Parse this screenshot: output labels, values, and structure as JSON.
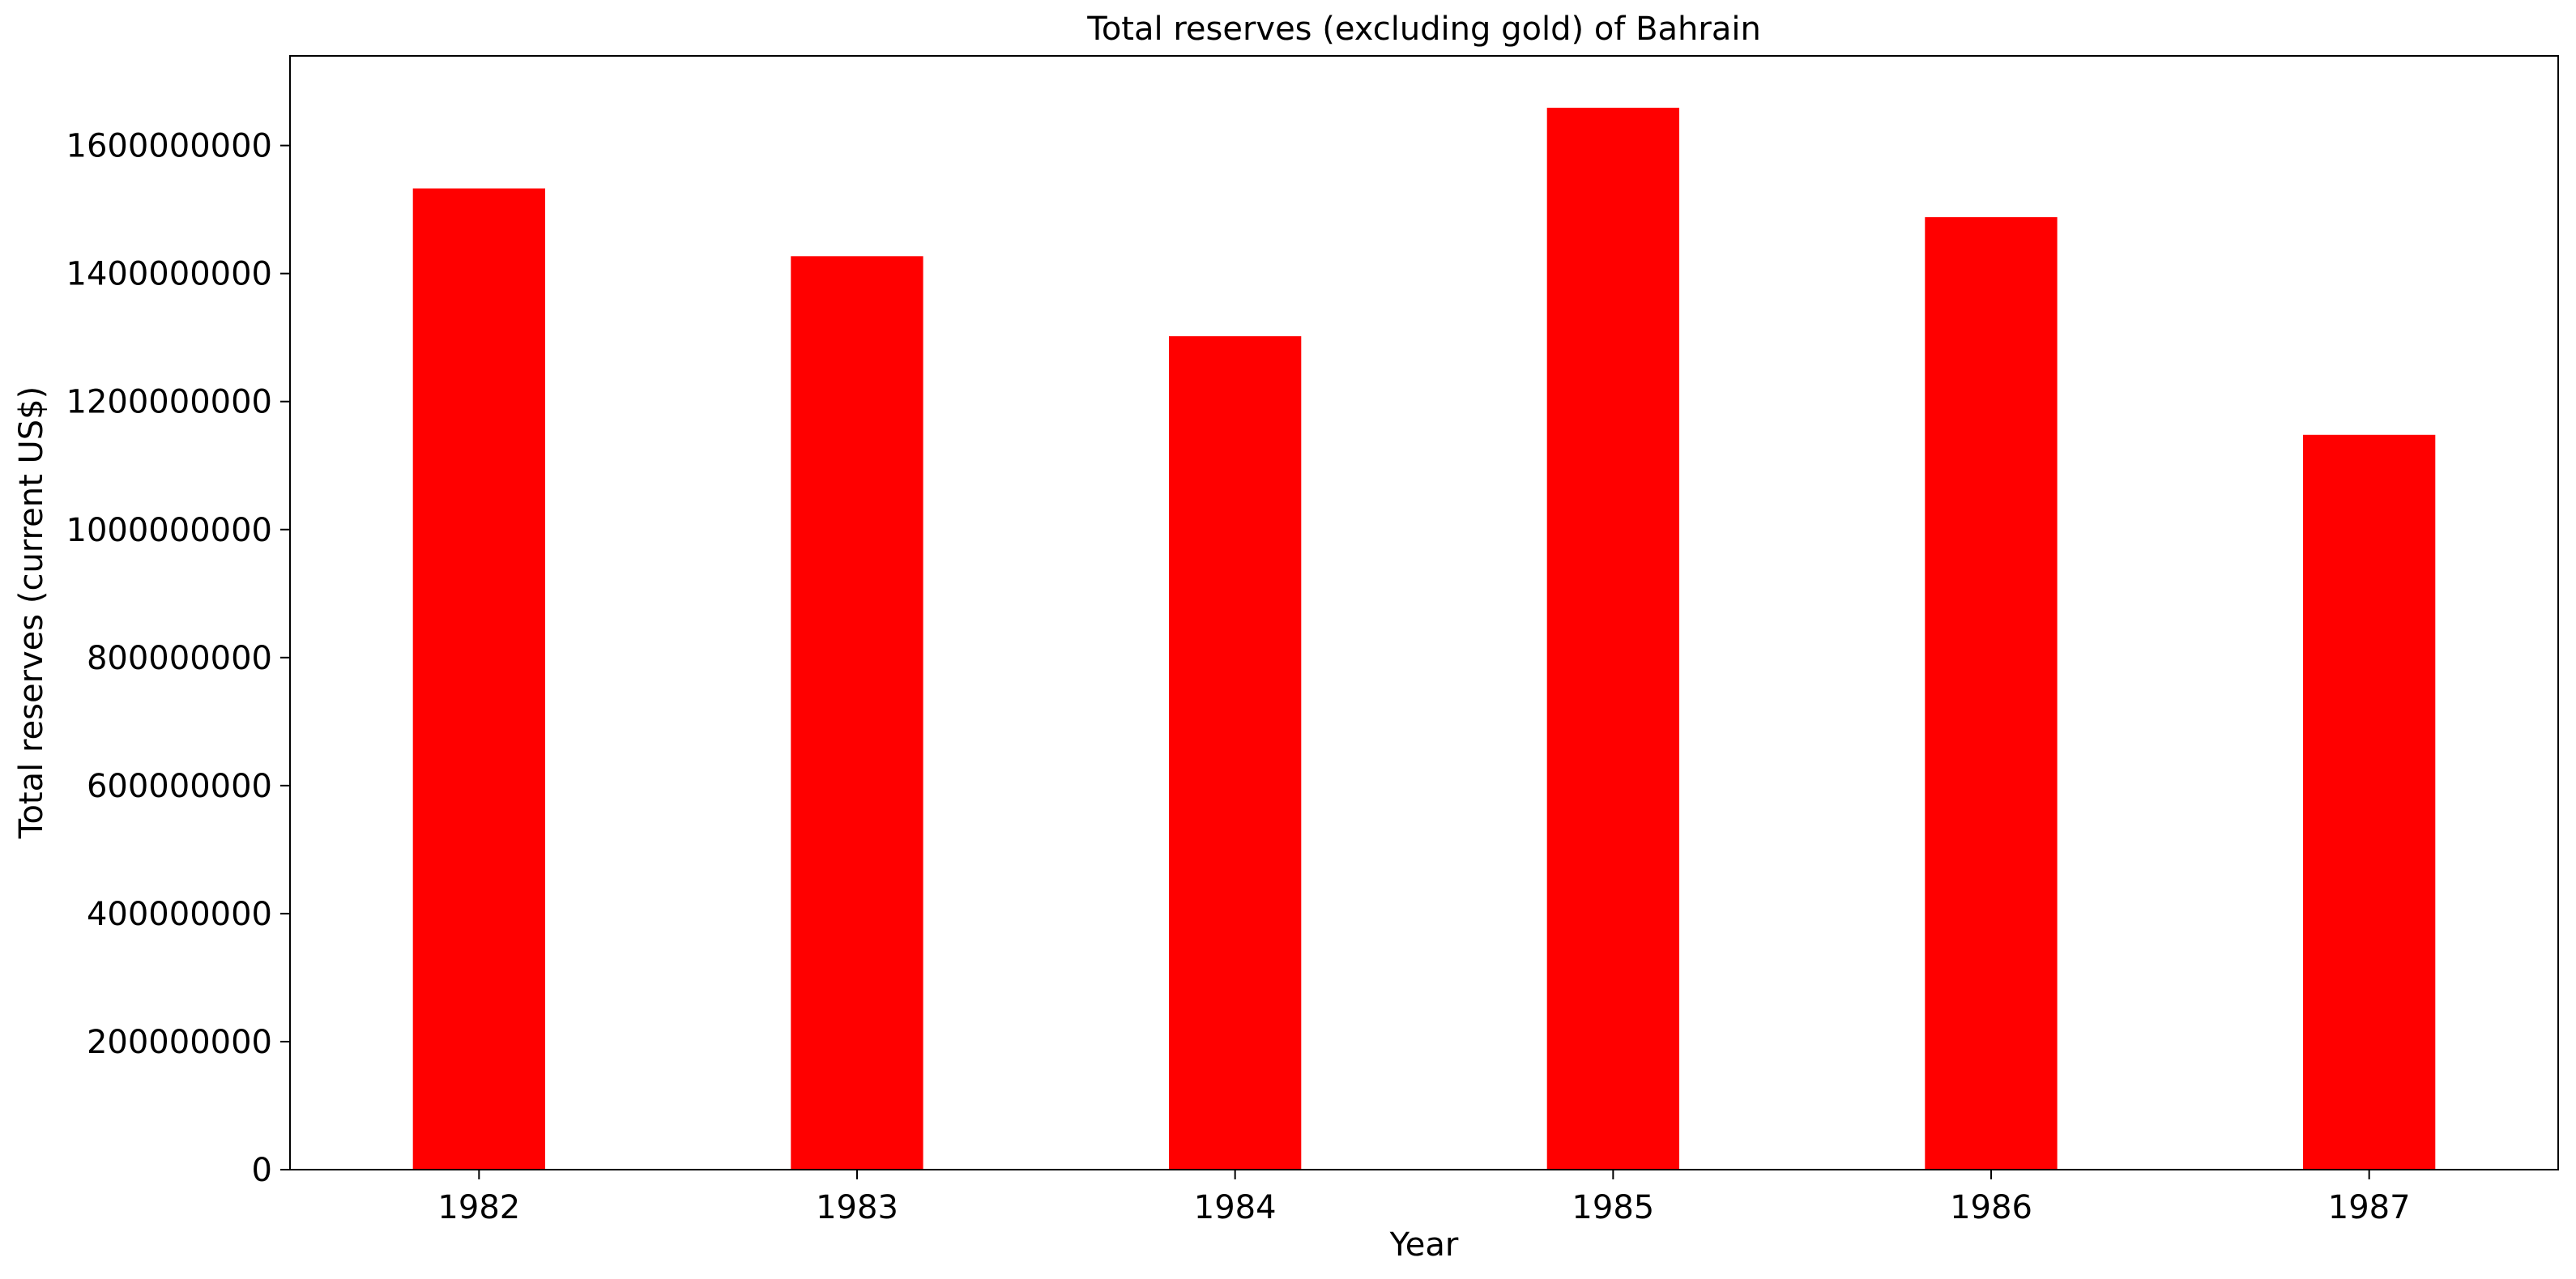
{
  "chart_data": {
    "type": "bar",
    "title": "Total reserves (excluding gold) of Bahrain",
    "xlabel": "Year",
    "ylabel": "Total reserves (current US$)",
    "categories": [
      "1982",
      "1983",
      "1984",
      "1985",
      "1986",
      "1987"
    ],
    "values": [
      1533000000,
      1427000000,
      1302000000,
      1659000000,
      1488000000,
      1148000000
    ],
    "ylim": [
      0,
      1740000000
    ],
    "yticks": [
      0,
      200000000,
      400000000,
      600000000,
      800000000,
      1000000000,
      1200000000,
      1400000000,
      1600000000
    ],
    "ytick_labels": [
      "0",
      "200000000",
      "400000000",
      "600000000",
      "800000000",
      "1000000000",
      "1200000000",
      "1400000000",
      "1600000000"
    ],
    "bar_color": "#ff0000",
    "grid": false,
    "legend": "none"
  }
}
